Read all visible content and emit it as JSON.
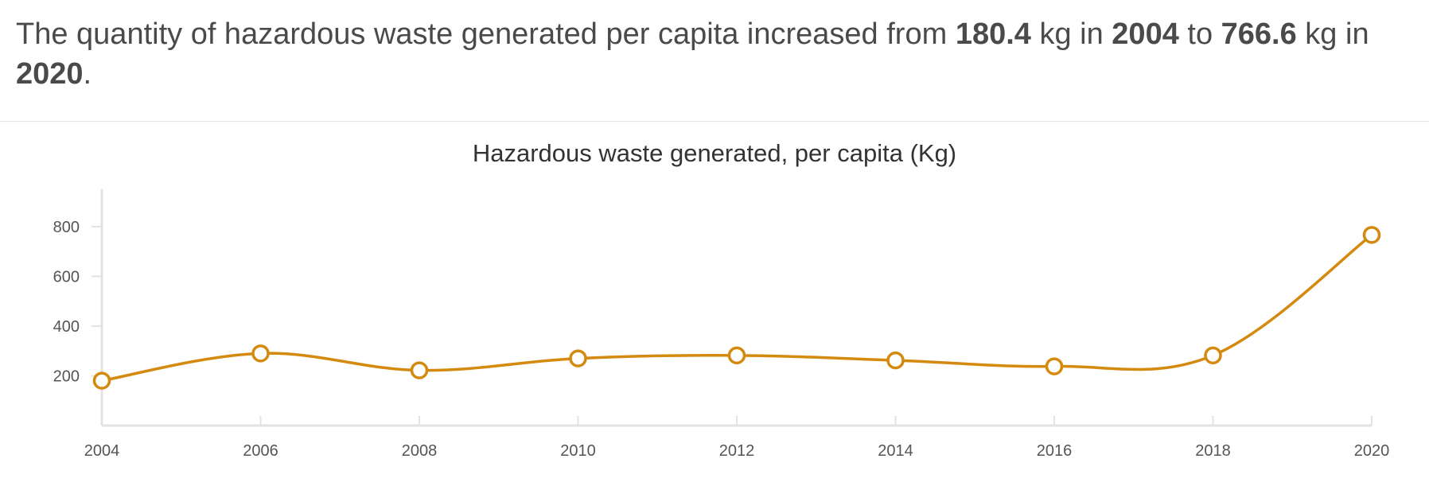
{
  "summary": {
    "p1": "The quantity of hazardous waste generated per capita increased from ",
    "start_value": "180.4",
    "p2": " kg in ",
    "start_year": "2004",
    "p3": " to ",
    "end_value": "766.6",
    "p4": " kg in ",
    "end_year": "2020",
    "p5": "."
  },
  "chart_data": {
    "type": "line",
    "title": "Hazardous waste generated, per capita (Kg)",
    "xlabel": "",
    "ylabel": "",
    "x": [
      2004,
      2006,
      2008,
      2010,
      2012,
      2014,
      2016,
      2018,
      2020
    ],
    "series": [
      {
        "values": [
          180.4,
          290,
          222,
          270,
          282,
          262,
          238,
          282,
          766.6
        ]
      }
    ],
    "xlim": [
      2004,
      2020
    ],
    "ylim": [
      0,
      950
    ],
    "yticks": [
      200,
      400,
      600,
      800
    ],
    "xticks": [
      2004,
      2006,
      2008,
      2010,
      2012,
      2014,
      2016,
      2018,
      2020
    ],
    "legend": "none",
    "grid": false,
    "line_color": "#d4890f"
  }
}
